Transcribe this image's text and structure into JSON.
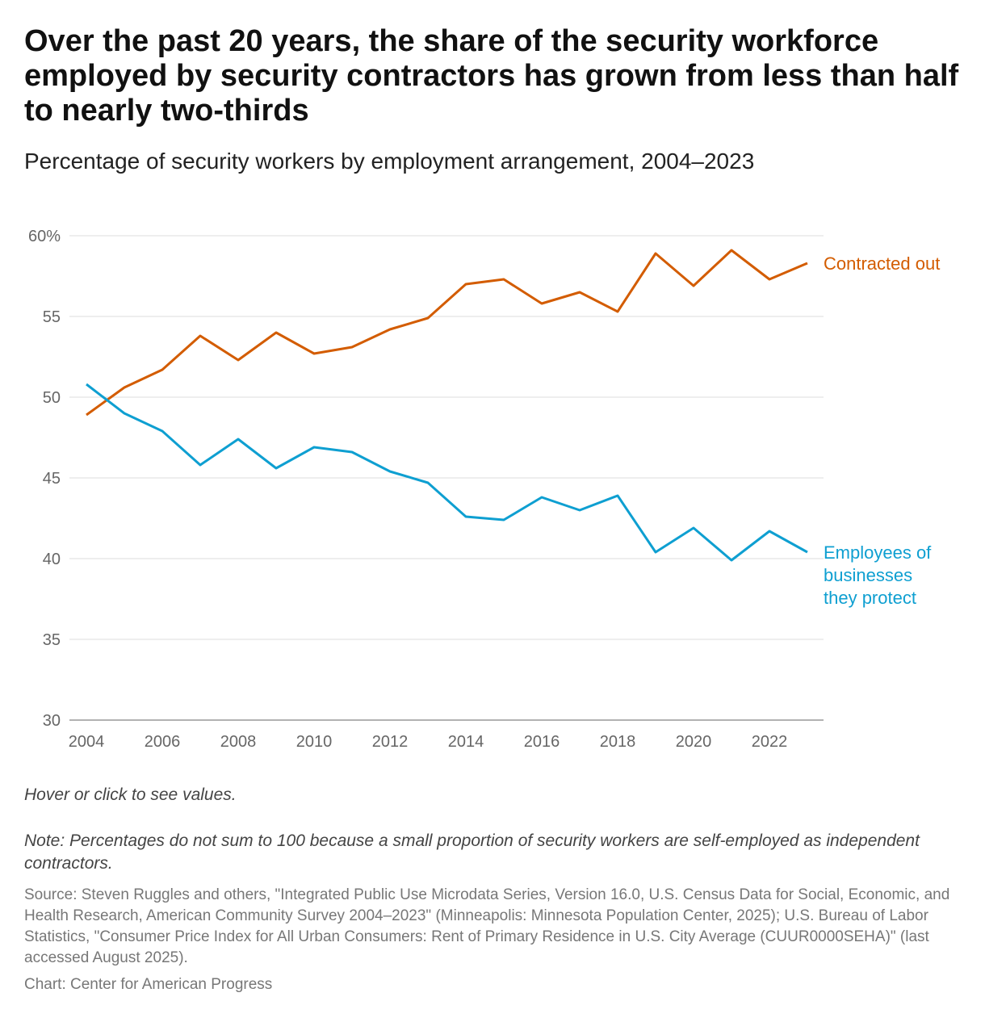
{
  "title": "Over the past 20 years, the share of the security workforce employed by security contractors has grown from less than half to nearly two-thirds",
  "subtitle": "Percentage of security workers by employment arrangement, 2004–2023",
  "hover_text": "Hover or click to see values.",
  "note": "Note: Percentages do not sum to 100 because a small proportion of security workers are self-employed as independent contractors.",
  "source": "Source: Steven Ruggles and others, \"Integrated Public Use Microdata Series, Version 16.0, U.S. Census Data for Social, Economic, and Health Research, American Community Survey 2004–2023\" (Minneapolis: Minnesota Population Center, 2025); U.S. Bureau of Labor Statistics, \"Consumer Price Index for All Urban Consumers: Rent of Primary Residence in U.S. City Average (CUUR0000SEHA)\" (last accessed August 2025).",
  "credit": "Chart: Center for American Progress",
  "chart_data": {
    "type": "line",
    "x": [
      2004,
      2005,
      2006,
      2007,
      2008,
      2009,
      2010,
      2011,
      2012,
      2013,
      2014,
      2015,
      2016,
      2017,
      2018,
      2019,
      2020,
      2021,
      2022,
      2023
    ],
    "xlim": [
      2004,
      2023
    ],
    "ylim": [
      30,
      60
    ],
    "xticks": [
      "2004",
      "2006",
      "2008",
      "2010",
      "2012",
      "2014",
      "2016",
      "2018",
      "2020",
      "2022"
    ],
    "yticks": [
      "30",
      "35",
      "40",
      "45",
      "50",
      "55",
      "60%"
    ],
    "grid": true,
    "series": [
      {
        "name": "Contracted out",
        "color": "#d35c00",
        "values": [
          48.9,
          50.6,
          51.7,
          53.8,
          52.3,
          54.0,
          52.7,
          53.1,
          54.2,
          54.9,
          57.0,
          57.3,
          55.8,
          56.5,
          55.3,
          58.9,
          56.9,
          59.1,
          57.3,
          58.3
        ]
      },
      {
        "name": "Employees of businesses they protect",
        "label_lines": [
          "Employees of",
          "businesses",
          "they protect"
        ],
        "color": "#0e9fd1",
        "values": [
          50.8,
          49.0,
          47.9,
          45.8,
          47.4,
          45.6,
          46.9,
          46.6,
          45.4,
          44.7,
          42.6,
          42.4,
          43.8,
          43.0,
          43.9,
          40.4,
          41.9,
          39.9,
          41.7,
          40.4
        ]
      }
    ]
  }
}
